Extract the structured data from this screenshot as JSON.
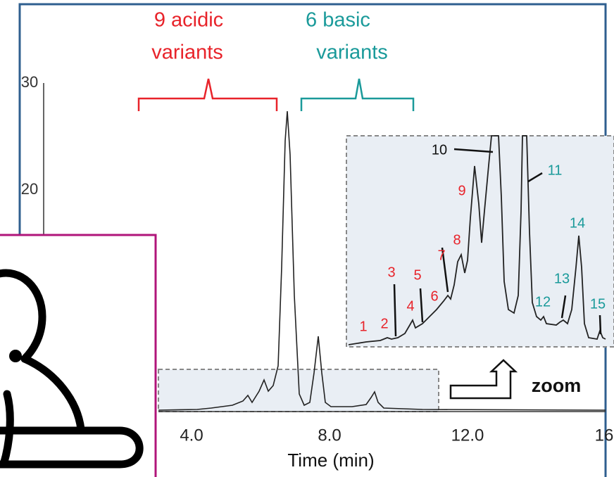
{
  "annotations": {
    "acidic": [
      "9 acidic",
      "variants"
    ],
    "basic": [
      "6 basic",
      "variants"
    ]
  },
  "x_axis": {
    "ticks": [
      "4.0",
      "8.0",
      "12.0",
      "16"
    ],
    "title": "Time (min)"
  },
  "y_axis": {
    "ticks": [
      "30",
      "20"
    ]
  },
  "zoom": {
    "label": "zoom",
    "peaks": [
      "1",
      "2",
      "3",
      "4",
      "5",
      "6",
      "7",
      "8",
      "9",
      "10",
      "11",
      "12",
      "13",
      "14",
      "15"
    ]
  }
}
